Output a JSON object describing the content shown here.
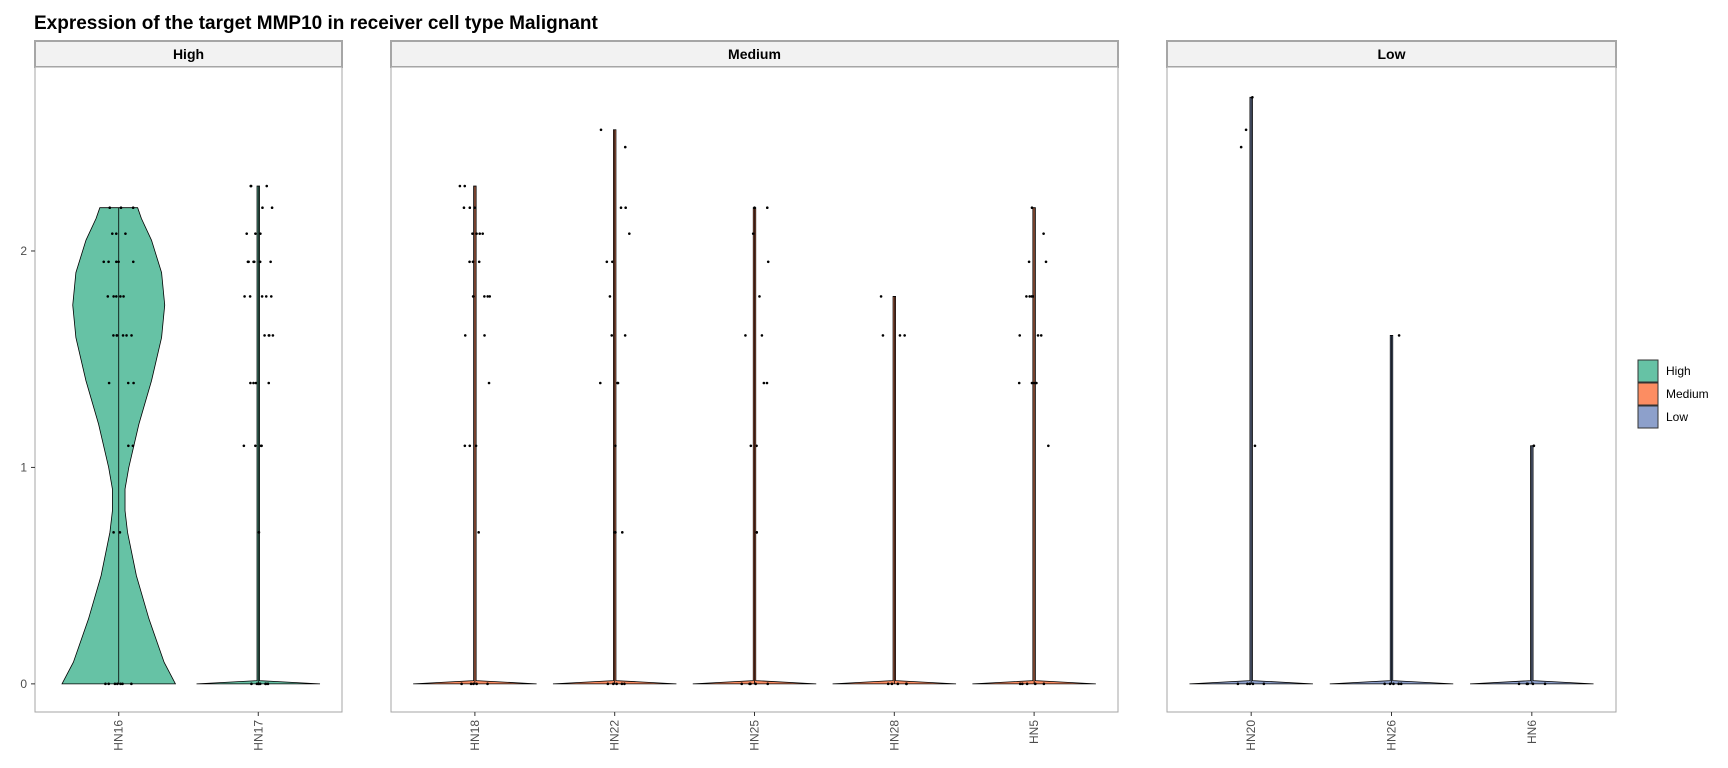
{
  "chart_data": {
    "type": "violin",
    "title": "Expression of the target MMP10 in receiver cell type Malignant",
    "xlabel": "",
    "ylabel": "",
    "ylim": [
      -0.13,
      2.85
    ],
    "y_ticks": [
      0,
      1,
      2
    ],
    "grid": false,
    "legend_placement": "right",
    "fill_colors": {
      "High": "#66C2A5",
      "Medium": "#FC8D62",
      "Low": "#8DA0CB"
    },
    "legend": [
      {
        "name": "High",
        "color": "#66C2A5"
      },
      {
        "name": "Medium",
        "color": "#FC8D62"
      },
      {
        "name": "Low",
        "color": "#8DA0CB"
      }
    ],
    "facets": [
      {
        "label": "High",
        "samples": [
          {
            "name": "HN16",
            "max": 2.2,
            "points": [
              0,
              0,
              0,
              0,
              0,
              0,
              0,
              0.7,
              0.7,
              1.1,
              1.1,
              1.39,
              1.39,
              1.39,
              1.61,
              1.61,
              1.61,
              1.61,
              1.61,
              1.61,
              1.79,
              1.79,
              1.79,
              1.79,
              1.79,
              1.95,
              1.95,
              1.95,
              1.95,
              1.95,
              2.08,
              2.08,
              2.08,
              2.2,
              2.2,
              2.2
            ],
            "density": [
              [
                0,
                0.9
              ],
              [
                0.1,
                0.72
              ],
              [
                0.3,
                0.48
              ],
              [
                0.5,
                0.28
              ],
              [
                0.7,
                0.14
              ],
              [
                0.8,
                0.1
              ],
              [
                0.9,
                0.1
              ],
              [
                1.0,
                0.16
              ],
              [
                1.2,
                0.32
              ],
              [
                1.4,
                0.52
              ],
              [
                1.6,
                0.68
              ],
              [
                1.75,
                0.73
              ],
              [
                1.9,
                0.68
              ],
              [
                2.05,
                0.52
              ],
              [
                2.15,
                0.36
              ],
              [
                2.2,
                0.3
              ]
            ]
          },
          {
            "name": "HN17",
            "max": 2.3,
            "points": [
              0,
              0,
              0,
              0,
              0,
              0,
              0,
              0,
              0.7,
              1.1,
              1.1,
              1.1,
              1.1,
              1.39,
              1.39,
              1.39,
              1.39,
              1.61,
              1.61,
              1.61,
              1.61,
              1.79,
              1.79,
              1.79,
              1.79,
              1.79,
              1.95,
              1.95,
              1.95,
              1.95,
              1.95,
              1.95,
              2.08,
              2.08,
              2.08,
              2.2,
              2.2,
              2.3,
              2.3,
              2.3
            ],
            "density": [
              [
                0,
                0.98
              ],
              [
                0.015,
                0.02
              ],
              [
                2.3,
                0.02
              ]
            ]
          }
        ]
      },
      {
        "label": "Medium",
        "samples": [
          {
            "name": "HN18",
            "max": 2.3,
            "points": [
              0,
              0,
              0,
              0,
              0,
              0.7,
              1.1,
              1.1,
              1.1,
              1.39,
              1.61,
              1.61,
              1.79,
              1.79,
              1.79,
              1.79,
              1.95,
              1.95,
              1.95,
              2.08,
              2.08,
              2.08,
              2.08,
              2.2,
              2.2,
              2.2,
              2.3,
              2.3
            ],
            "density": [
              [
                0,
                0.98
              ],
              [
                0.015,
                0.02
              ],
              [
                2.3,
                0.02
              ]
            ]
          },
          {
            "name": "HN22",
            "max": 2.56,
            "points": [
              0,
              0,
              0,
              0,
              0,
              0.7,
              0.7,
              0.7,
              1.1,
              1.39,
              1.39,
              1.39,
              1.61,
              1.61,
              1.79,
              1.95,
              1.95,
              2.08,
              2.2,
              2.2,
              2.48,
              2.56
            ],
            "density": [
              [
                0,
                0.98
              ],
              [
                0.015,
                0.02
              ],
              [
                2.56,
                0.02
              ]
            ]
          },
          {
            "name": "HN25",
            "max": 2.2,
            "points": [
              0,
              0,
              0,
              0,
              0,
              0.7,
              0.7,
              0.7,
              1.1,
              1.1,
              1.39,
              1.39,
              1.61,
              1.61,
              1.79,
              1.95,
              2.08,
              2.2,
              2.2
            ],
            "density": [
              [
                0,
                0.98
              ],
              [
                0.015,
                0.02
              ],
              [
                2.2,
                0.02
              ]
            ]
          },
          {
            "name": "HN28",
            "max": 1.79,
            "points": [
              0,
              0,
              0,
              0,
              0,
              1.61,
              1.61,
              1.61,
              1.79
            ],
            "density": [
              [
                0,
                0.98
              ],
              [
                0.015,
                0.02
              ],
              [
                1.79,
                0.02
              ]
            ]
          },
          {
            "name": "HN5",
            "max": 2.2,
            "points": [
              0,
              0,
              0,
              0,
              0,
              1.1,
              1.39,
              1.39,
              1.39,
              1.39,
              1.61,
              1.61,
              1.61,
              1.79,
              1.79,
              1.79,
              1.79,
              1.95,
              1.95,
              2.08,
              2.2
            ],
            "density": [
              [
                0,
                0.98
              ],
              [
                0.015,
                0.02
              ],
              [
                2.2,
                0.02
              ]
            ]
          }
        ]
      },
      {
        "label": "Low",
        "samples": [
          {
            "name": "HN20",
            "max": 2.71,
            "points": [
              0,
              0,
              0,
              0,
              0,
              1.1,
              2.48,
              2.56,
              2.71
            ],
            "density": [
              [
                0,
                0.98
              ],
              [
                0.015,
                0.02
              ],
              [
                2.71,
                0.02
              ]
            ]
          },
          {
            "name": "HN26",
            "max": 1.61,
            "points": [
              0,
              0,
              0,
              0,
              0,
              1.61
            ],
            "density": [
              [
                0,
                0.98
              ],
              [
                0.015,
                0.02
              ],
              [
                1.61,
                0.02
              ]
            ]
          },
          {
            "name": "HN6",
            "max": 1.1,
            "points": [
              0,
              0,
              0,
              0,
              0,
              1.1,
              1.1
            ],
            "density": [
              [
                0,
                0.98
              ],
              [
                0.015,
                0.02
              ],
              [
                1.1,
                0.02
              ]
            ]
          }
        ]
      }
    ]
  }
}
